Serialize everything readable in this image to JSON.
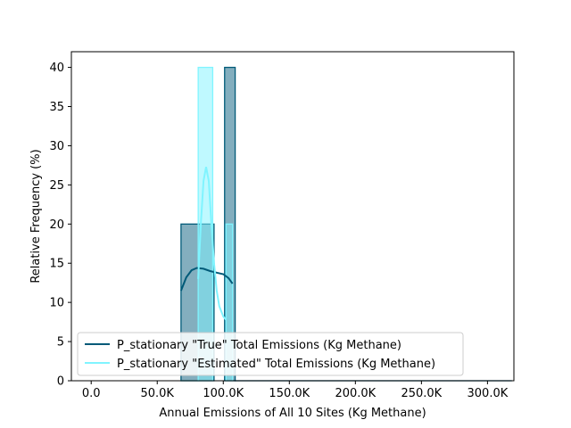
{
  "chart_data": {
    "type": "histogram",
    "xlabel": "Annual Emissions of All 10 Sites (Kg Methane)",
    "ylabel": "Relative Frequency (%)",
    "xlim": [
      -15000,
      320000
    ],
    "ylim": [
      0,
      42
    ],
    "xticks": [
      {
        "value": 0,
        "label": "0.0"
      },
      {
        "value": 50000,
        "label": "50.0K"
      },
      {
        "value": 100000,
        "label": "100.0K"
      },
      {
        "value": 150000,
        "label": "150.0K"
      },
      {
        "value": 200000,
        "label": "200.0K"
      },
      {
        "value": 250000,
        "label": "250.0K"
      },
      {
        "value": 300000,
        "label": "300.0K"
      }
    ],
    "yticks": [
      {
        "value": 0,
        "label": "0"
      },
      {
        "value": 5,
        "label": "5"
      },
      {
        "value": 10,
        "label": "10"
      },
      {
        "value": 15,
        "label": "15"
      },
      {
        "value": 20,
        "label": "20"
      },
      {
        "value": 25,
        "label": "25"
      },
      {
        "value": 30,
        "label": "30"
      },
      {
        "value": 35,
        "label": "35"
      },
      {
        "value": 40,
        "label": "40"
      }
    ],
    "legend_position": "lower-left",
    "series": [
      {
        "name": "P_stationary \"True\" Total Emissions (Kg Methane)",
        "color": "#005a78",
        "fill": "#5a93a8",
        "bins": [
          {
            "x0": 68000,
            "x1": 93000,
            "value": 20
          },
          {
            "x0": 101000,
            "x1": 109000,
            "value": 40
          },
          {
            "x0": 109000,
            "x1": 318000,
            "value": 0
          }
        ],
        "kde": [
          [
            68000,
            11.5
          ],
          [
            72000,
            13.2
          ],
          [
            76000,
            14.1
          ],
          [
            80000,
            14.4
          ],
          [
            85000,
            14.3
          ],
          [
            90000,
            14.0
          ],
          [
            95000,
            13.8
          ],
          [
            100000,
            13.6
          ],
          [
            104000,
            13.1
          ],
          [
            107000,
            12.4
          ]
        ]
      },
      {
        "name": "P_stationary \"Estimated\" Total Emissions (Kg Methane)",
        "color": "#80f4ff",
        "fill": "#80f4ff",
        "bins": [
          {
            "x0": 68000,
            "x1": 81000,
            "value": 0
          },
          {
            "x0": 81000,
            "x1": 92000,
            "value": 40
          },
          {
            "x0": 102000,
            "x1": 107000,
            "value": 20
          }
        ],
        "kde": [
          [
            81000,
            13.0
          ],
          [
            83000,
            20.0
          ],
          [
            85000,
            25.5
          ],
          [
            87000,
            27.3
          ],
          [
            89000,
            25.5
          ],
          [
            91000,
            20.0
          ],
          [
            93000,
            15.0
          ],
          [
            95000,
            11.5
          ],
          [
            97000,
            9.5
          ],
          [
            100000,
            8.2
          ],
          [
            102000,
            7.8
          ]
        ]
      }
    ]
  }
}
